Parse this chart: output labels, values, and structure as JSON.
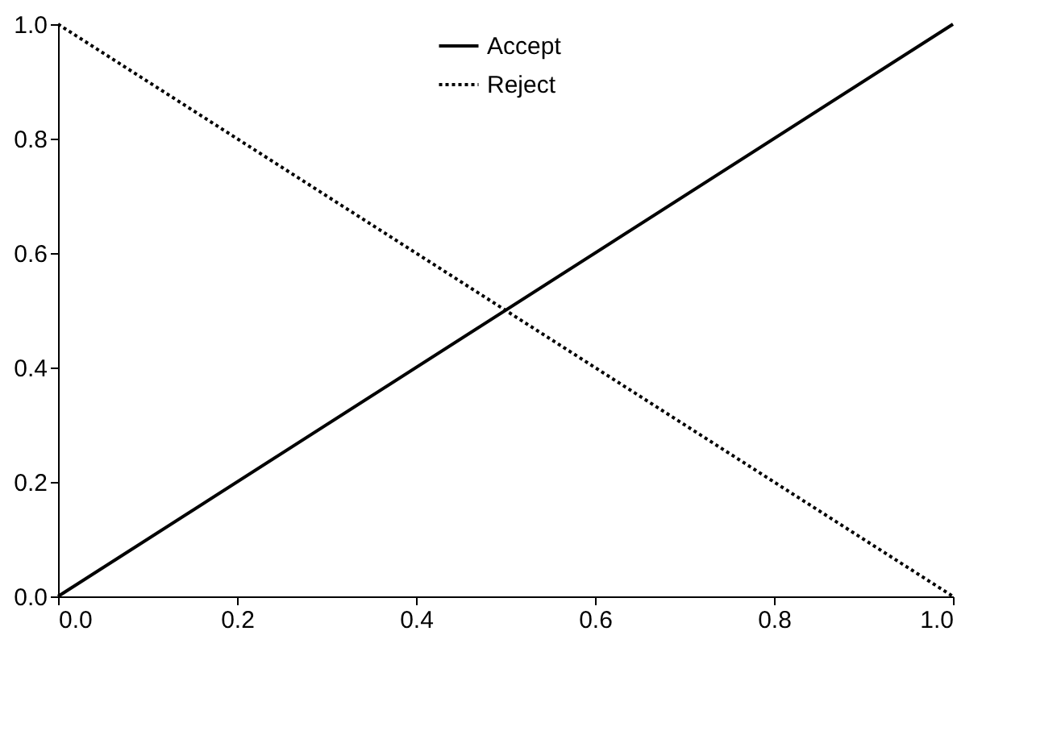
{
  "chart_data": {
    "type": "line",
    "x": [
      0,
      1
    ],
    "series": [
      {
        "name": "Accept",
        "color": "#000000",
        "values": [
          0,
          1
        ],
        "line_style": "solid"
      },
      {
        "name": "Reject",
        "color": "#000000",
        "values": [
          1,
          0
        ],
        "line_style": "dotted"
      }
    ],
    "xlim": [
      0,
      1
    ],
    "ylim": [
      0,
      1
    ],
    "xticks": [
      {
        "value": 0,
        "label": "0.0"
      },
      {
        "value": 0.2,
        "label": "0.2"
      },
      {
        "value": 0.4,
        "label": "0.4"
      },
      {
        "value": 0.6,
        "label": "0.6"
      },
      {
        "value": 0.8,
        "label": "0.8"
      },
      {
        "value": 1,
        "label": "1.0"
      }
    ],
    "yticks": [
      {
        "value": 0,
        "label": "0.0"
      },
      {
        "value": 0.2,
        "label": "0.2"
      },
      {
        "value": 0.4,
        "label": "0.4"
      },
      {
        "value": 0.6,
        "label": "0.6"
      },
      {
        "value": 0.8,
        "label": "0.8"
      },
      {
        "value": 1,
        "label": "1.0"
      }
    ],
    "grid": false,
    "legend": "top",
    "marker": "none"
  }
}
